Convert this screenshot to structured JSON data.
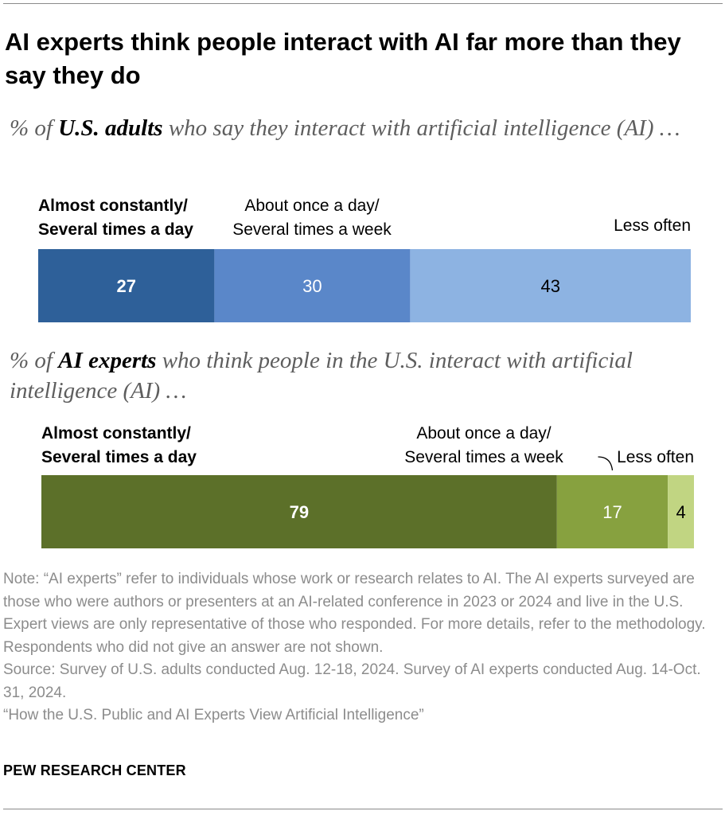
{
  "title": "AI experts think people interact with AI far more than they say they do",
  "chart_data": [
    {
      "type": "bar",
      "orientation": "horizontal-stacked",
      "subtitle": {
        "prefix": "% of ",
        "emphasis": "U.S. adults",
        "suffix": " who say they interact with artificial intelligence (AI) …"
      },
      "categories": [
        {
          "line1": "Almost constantly/",
          "line2": "Several times a day"
        },
        {
          "line1": "About once a day/",
          "line2": "Several times a week"
        },
        {
          "line1": "Less often",
          "line2": ""
        }
      ],
      "values": [
        27,
        30,
        43
      ],
      "value_labels": [
        "27",
        "30",
        "43"
      ],
      "colors": [
        "#2e6099",
        "#5a87c9",
        "#8db3e2"
      ],
      "label_colors": [
        "#ffffff",
        "#ffffff",
        "#000000"
      ],
      "xlim": [
        0,
        100
      ]
    },
    {
      "type": "bar",
      "orientation": "horizontal-stacked",
      "subtitle": {
        "prefix": "% of ",
        "emphasis": "AI experts",
        "suffix": " who think people in the U.S. interact with artificial intelligence (AI) …"
      },
      "categories": [
        {
          "line1": "Almost constantly/",
          "line2": "Several times a day"
        },
        {
          "line1": "About once a day/",
          "line2": "Several times a week"
        },
        {
          "line1": "Less often",
          "line2": ""
        }
      ],
      "values": [
        79,
        17,
        4
      ],
      "value_labels": [
        "79",
        "17",
        "4"
      ],
      "colors": [
        "#5c7029",
        "#87a13f",
        "#c1d582"
      ],
      "label_colors": [
        "#ffffff",
        "#ffffff",
        "#000000"
      ],
      "xlim": [
        0,
        100
      ]
    }
  ],
  "notes": {
    "note": "Note: “AI experts” refer to individuals whose work or research relates to AI. The AI experts surveyed are those who were authors or presenters at an AI-related conference in 2023 or 2024 and live in the U.S. Expert views are only representative of those who responded. For more details, refer to the methodology. Respondents who did not give an answer are not shown.",
    "source": "Source: Survey of U.S. adults conducted Aug. 12-18, 2024. Survey of AI experts conducted Aug. 14-Oct. 31, 2024.",
    "report": "“How the U.S. Public and AI Experts View Artificial Intelligence”"
  },
  "brand": "PEW RESEARCH CENTER"
}
